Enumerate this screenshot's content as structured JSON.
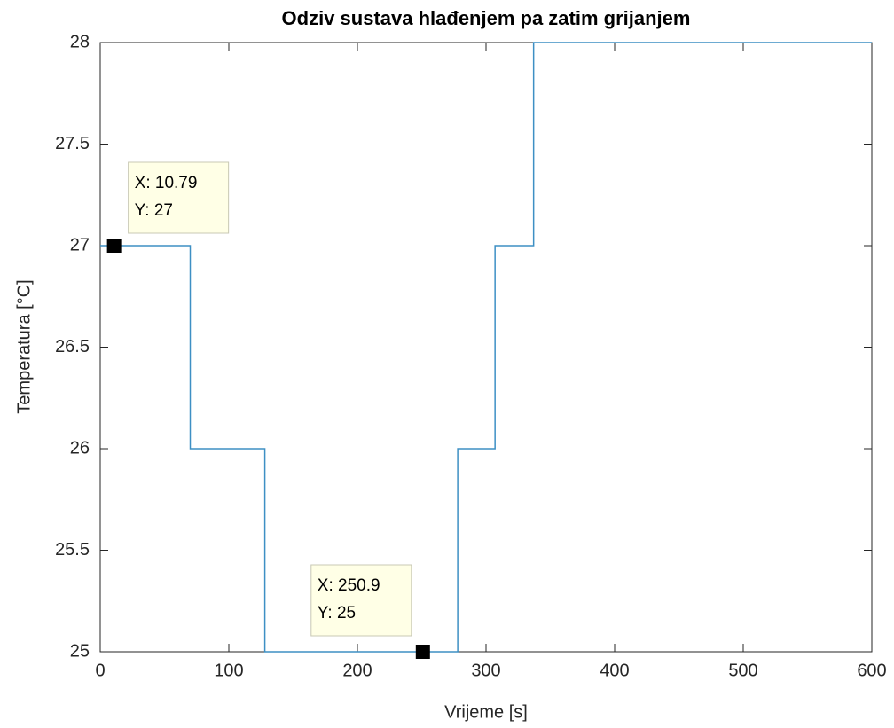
{
  "chart_data": {
    "type": "line",
    "title": "Odziv sustava hlađenjem pa zatim grijanjem",
    "xlabel": "Vrijeme [s]",
    "ylabel": "Temperatura [°C]",
    "x": [
      0,
      70,
      70,
      128,
      128,
      278,
      278,
      307,
      307,
      337,
      337,
      600
    ],
    "series": [
      {
        "name": "Temperatura",
        "color": "#3d8fc4",
        "values": [
          27,
          27,
          26,
          26,
          25,
          25,
          26,
          26,
          27,
          27,
          28,
          28
        ]
      }
    ],
    "xlim": [
      0,
      600
    ],
    "xticks": [
      0,
      100,
      200,
      300,
      400,
      500,
      600
    ],
    "ylim": [
      25,
      28
    ],
    "yticks": [
      25,
      25.5,
      26,
      26.5,
      27,
      27.5,
      28
    ],
    "grid": false,
    "annotations": [
      {
        "x": 10.79,
        "y": 27,
        "x_label": "X: 10.79",
        "y_label": "Y: 27"
      },
      {
        "x": 250.9,
        "y": 25,
        "x_label": "X: 250.9",
        "y_label": "Y: 25"
      }
    ]
  }
}
